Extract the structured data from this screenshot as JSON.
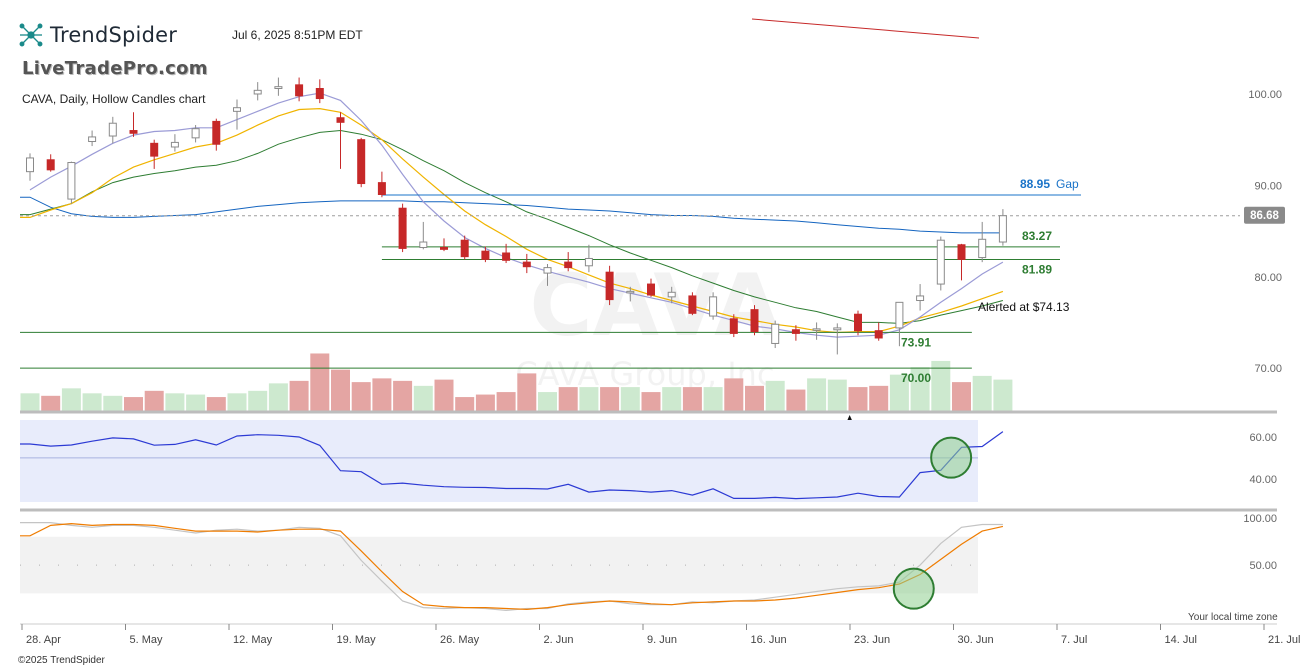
{
  "header": {
    "brand": "TrendSpider",
    "timestamp": "Jul 6, 2025 8:51PM EDT",
    "watermark_site": "LiveTradePro.com",
    "chart_description": "CAVA, Daily, Hollow Candles chart"
  },
  "footer": {
    "copyright": "©2025 TrendSpider",
    "local_time_label": "Your local time zone"
  },
  "chart_data": {
    "type": "candlestick",
    "symbol_watermark": "CAVA",
    "company_watermark": "CAVA Group, Inc.",
    "price_ticks": [
      "100.00",
      "90.00",
      "80.00",
      "70.00"
    ],
    "price_tick_values": [
      100,
      90,
      80,
      70
    ],
    "price_range": [
      65.2,
      103.5
    ],
    "x_tick_labels": [
      "28. Apr",
      "5. May",
      "12. May",
      "19. May",
      "26. May",
      "2. Jun",
      "9. Jun",
      "16. Jun",
      "23. Jun",
      "30. Jun",
      "7. Jul",
      "14. Jul",
      "21. Jul"
    ],
    "x_tick_bar_index": [
      0,
      5,
      10,
      15,
      20,
      25,
      30,
      35,
      40,
      45,
      50,
      55,
      60
    ],
    "last_price": "86.68",
    "last_price_value": 86.68,
    "colors": {
      "up": "#8a8a8a",
      "down": "#c62828",
      "vol_up": "#cde9cf",
      "vol_down": "#e4a5a3",
      "level": "#2e7d32",
      "gap": "#1a73c8"
    },
    "candles": [
      {
        "d": "Apr 28",
        "o": 91.5,
        "h": 93.5,
        "l": 90.5,
        "c": 93.0
      },
      {
        "d": "Apr 29",
        "o": 92.8,
        "h": 93.4,
        "l": 91.5,
        "c": 91.7
      },
      {
        "d": "Apr 30",
        "o": 88.5,
        "h": 92.6,
        "l": 88.0,
        "c": 92.5
      },
      {
        "d": "May 1",
        "o": 94.8,
        "h": 96.0,
        "l": 94.3,
        "c": 95.3
      },
      {
        "d": "May 2",
        "o": 95.4,
        "h": 97.5,
        "l": 94.6,
        "c": 96.8
      },
      {
        "d": "May 5",
        "o": 96.0,
        "h": 98.0,
        "l": 95.3,
        "c": 95.7
      },
      {
        "d": "May 6",
        "o": 94.6,
        "h": 95.0,
        "l": 91.8,
        "c": 93.2
      },
      {
        "d": "May 7",
        "o": 94.2,
        "h": 95.6,
        "l": 93.7,
        "c": 94.7
      },
      {
        "d": "May 8",
        "o": 95.2,
        "h": 96.6,
        "l": 94.7,
        "c": 96.2
      },
      {
        "d": "May 9",
        "o": 97.0,
        "h": 97.3,
        "l": 93.8,
        "c": 94.5
      },
      {
        "d": "May 12",
        "o": 98.1,
        "h": 99.4,
        "l": 96.1,
        "c": 98.5
      },
      {
        "d": "May 13",
        "o": 100.0,
        "h": 101.3,
        "l": 99.3,
        "c": 100.4
      },
      {
        "d": "May 14",
        "o": 100.6,
        "h": 101.8,
        "l": 99.8,
        "c": 100.8
      },
      {
        "d": "May 15",
        "o": 101.0,
        "h": 101.8,
        "l": 99.2,
        "c": 99.8
      },
      {
        "d": "May 16",
        "o": 100.6,
        "h": 101.6,
        "l": 99.0,
        "c": 99.5
      },
      {
        "d": "May 19",
        "o": 97.4,
        "h": 98.0,
        "l": 91.8,
        "c": 96.9
      },
      {
        "d": "May 20",
        "o": 95.0,
        "h": 95.2,
        "l": 89.8,
        "c": 90.2
      },
      {
        "d": "May 21",
        "o": 90.3,
        "h": 91.5,
        "l": 88.7,
        "c": 89.0
      },
      {
        "d": "May 22",
        "o": 87.5,
        "h": 88.0,
        "l": 82.7,
        "c": 83.1
      },
      {
        "d": "May 23",
        "o": 83.2,
        "h": 86.0,
        "l": 83.0,
        "c": 83.8
      },
      {
        "d": "May 27",
        "o": 83.2,
        "h": 84.2,
        "l": 82.8,
        "c": 83.0
      },
      {
        "d": "May 28",
        "o": 84.0,
        "h": 84.5,
        "l": 81.9,
        "c": 82.2
      },
      {
        "d": "May 29",
        "o": 82.8,
        "h": 83.3,
        "l": 81.6,
        "c": 81.9
      },
      {
        "d": "May 30",
        "o": 82.6,
        "h": 83.6,
        "l": 81.5,
        "c": 81.8
      },
      {
        "d": "Jun 2",
        "o": 81.6,
        "h": 82.5,
        "l": 80.4,
        "c": 81.1
      },
      {
        "d": "Jun 3",
        "o": 80.4,
        "h": 81.4,
        "l": 79.0,
        "c": 81.0
      },
      {
        "d": "Jun 4",
        "o": 81.6,
        "h": 82.7,
        "l": 80.6,
        "c": 81.0
      },
      {
        "d": "Jun 5",
        "o": 81.2,
        "h": 83.5,
        "l": 80.5,
        "c": 82.0
      },
      {
        "d": "Jun 6",
        "o": 80.5,
        "h": 81.2,
        "l": 76.9,
        "c": 77.5
      },
      {
        "d": "Jun 9",
        "o": 78.3,
        "h": 78.9,
        "l": 77.3,
        "c": 78.4
      },
      {
        "d": "Jun 10",
        "o": 79.2,
        "h": 79.8,
        "l": 77.8,
        "c": 78.0
      },
      {
        "d": "Jun 11",
        "o": 77.8,
        "h": 78.9,
        "l": 77.1,
        "c": 78.3
      },
      {
        "d": "Jun 12",
        "o": 77.9,
        "h": 78.3,
        "l": 75.8,
        "c": 76.0
      },
      {
        "d": "Jun 13",
        "o": 75.7,
        "h": 78.3,
        "l": 75.3,
        "c": 77.8
      },
      {
        "d": "Jun 16",
        "o": 75.4,
        "h": 75.9,
        "l": 73.4,
        "c": 73.8
      },
      {
        "d": "Jun 17",
        "o": 76.4,
        "h": 76.9,
        "l": 73.6,
        "c": 74.0
      },
      {
        "d": "Jun 18",
        "o": 72.7,
        "h": 75.2,
        "l": 72.2,
        "c": 74.8
      },
      {
        "d": "Jun 20",
        "o": 74.2,
        "h": 74.7,
        "l": 73.0,
        "c": 73.8
      },
      {
        "d": "Jun 23",
        "o": 74.2,
        "h": 75.0,
        "l": 73.1,
        "c": 74.3
      },
      {
        "d": "Jun 24",
        "o": 74.2,
        "h": 74.9,
        "l": 71.5,
        "c": 74.4
      },
      {
        "d": "Jun 25",
        "o": 75.9,
        "h": 76.3,
        "l": 73.6,
        "c": 74.1
      },
      {
        "d": "Jun 26",
        "o": 74.1,
        "h": 75.0,
        "l": 73.0,
        "c": 73.3
      },
      {
        "d": "Jun 27",
        "o": 74.4,
        "h": 77.2,
        "l": 72.4,
        "c": 77.2
      },
      {
        "d": "Jun 30",
        "o": 77.4,
        "h": 79.2,
        "l": 76.3,
        "c": 77.9
      },
      {
        "d": "Jul 1",
        "o": 79.2,
        "h": 84.4,
        "l": 78.5,
        "c": 84.0
      },
      {
        "d": "Jul 2",
        "o": 83.5,
        "h": 83.6,
        "l": 79.6,
        "c": 81.9
      },
      {
        "d": "Jul 3",
        "o": 82.1,
        "h": 86.0,
        "l": 81.6,
        "c": 84.1
      },
      {
        "d": "Jul 4",
        "o": 83.8,
        "h": 87.4,
        "l": 83.4,
        "c": 86.68
      }
    ],
    "volume": [
      1.5,
      1.3,
      1.9,
      1.5,
      1.3,
      1.2,
      1.7,
      1.5,
      1.4,
      1.2,
      1.5,
      1.7,
      2.3,
      2.5,
      4.7,
      3.4,
      2.4,
      2.7,
      2.5,
      2.1,
      2.6,
      1.2,
      1.4,
      1.6,
      3.1,
      1.6,
      2.0,
      2.0,
      2.0,
      2.0,
      1.6,
      2.0,
      2.0,
      2.0,
      2.7,
      2.1,
      2.5,
      1.8,
      2.7,
      2.6,
      2.0,
      2.1,
      3.0,
      3.6,
      4.1,
      2.4,
      2.9,
      2.6
    ],
    "volume_range": [
      0,
      5.3
    ],
    "sma_slow": [
      88.7,
      87.6,
      86.9,
      86.6,
      86.5,
      86.5,
      86.6,
      86.7,
      86.8,
      87.1,
      87.4,
      87.7,
      87.9,
      88.1,
      88.2,
      88.3,
      88.3,
      88.3,
      88.3,
      88.2,
      88.2,
      88.1,
      88.0,
      87.9,
      87.8,
      87.6,
      87.4,
      87.3,
      87.2,
      87.0,
      86.8,
      86.7,
      86.7,
      86.6,
      86.4,
      86.3,
      86.2,
      86.1,
      85.9,
      85.7,
      85.5,
      85.3,
      85.2,
      85.0,
      84.9,
      84.8,
      84.8,
      84.8
    ],
    "ema_green": [
      86.8,
      87.4,
      88.0,
      89.3,
      90.3,
      90.9,
      91.3,
      91.6,
      92.0,
      92.2,
      92.7,
      93.5,
      94.5,
      95.2,
      95.8,
      96.0,
      95.6,
      95.0,
      93.9,
      92.7,
      91.6,
      90.3,
      89.2,
      88.2,
      87.1,
      86.3,
      85.4,
      84.5,
      83.5,
      82.6,
      81.8,
      81.0,
      80.1,
      79.3,
      78.5,
      77.8,
      77.2,
      76.6,
      76.2,
      75.6,
      75.0,
      75.0,
      74.9,
      75.2,
      75.8,
      76.3,
      76.8,
      77.4
    ],
    "ema_yellow": [
      86.5,
      87.3,
      88.0,
      89.2,
      90.8,
      92.0,
      92.8,
      93.5,
      94.2,
      94.6,
      95.5,
      96.6,
      97.6,
      98.3,
      98.4,
      98.0,
      96.6,
      95.0,
      92.9,
      90.9,
      89.0,
      87.2,
      85.7,
      84.4,
      83.0,
      81.9,
      81.1,
      80.2,
      79.3,
      78.7,
      78.0,
      77.4,
      76.8,
      76.2,
      75.6,
      75.2,
      74.8,
      74.5,
      74.1,
      73.9,
      74.0,
      74.0,
      74.6,
      75.5,
      76.1,
      76.8,
      77.6,
      78.4
    ],
    "ma_lavender": [
      89.5,
      90.9,
      92.1,
      93.4,
      94.6,
      95.5,
      95.9,
      96.0,
      96.3,
      96.3,
      97.2,
      98.1,
      99.0,
      99.7,
      100.1,
      99.3,
      97.1,
      94.4,
      91.2,
      88.2,
      86.1,
      84.3,
      83.1,
      82.1,
      81.3,
      80.6,
      80.0,
      79.4,
      78.7,
      78.2,
      77.7,
      77.2,
      76.5,
      75.8,
      75.2,
      74.6,
      74.3,
      73.9,
      73.6,
      73.4,
      73.5,
      73.6,
      74.2,
      75.6,
      77.2,
      78.7,
      80.3,
      81.6
    ],
    "levels": [
      {
        "label": "88.95",
        "value": 88.95,
        "suffix": "Gap",
        "color": "#1a73c8",
        "x_start": 17,
        "x_end": 52
      },
      {
        "label": "83.27",
        "value": 83.27,
        "color": "#2e7d32",
        "x_start": 17,
        "x_end": 52
      },
      {
        "label": "81.89",
        "value": 81.89,
        "color": "#2e7d32",
        "x_start": 17,
        "x_end": 52
      },
      {
        "label": "73.91",
        "value": 73.91,
        "color": "#2e7d32",
        "x_start": 0,
        "x_end": 45.5
      },
      {
        "label": "70.00",
        "value": 70.0,
        "color": "#2e7d32",
        "x_start": 0,
        "x_end": 45.5
      }
    ],
    "annotation": {
      "text": "Alerted at $74.13",
      "x_bar": 46.5,
      "y_value": 76.7
    },
    "arrow_bar": 39.5,
    "ind1": {
      "ticks": [
        "60.00",
        "40.00"
      ],
      "tick_values": [
        60,
        40
      ],
      "range": [
        29,
        68
      ],
      "mid_line": 50,
      "values": [
        56.6,
        55.6,
        56.1,
        57.9,
        59.5,
        59.0,
        56.0,
        56.4,
        58.6,
        56.1,
        60.4,
        61.0,
        60.7,
        59.9,
        55.9,
        43.9,
        43.4,
        37.4,
        38.0,
        37.0,
        36.3,
        36.0,
        35.9,
        35.4,
        35.4,
        35.2,
        37.4,
        33.7,
        34.7,
        34.4,
        33.7,
        34.4,
        32.3,
        35.3,
        30.7,
        30.7,
        31.2,
        30.6,
        31.0,
        31.4,
        33.2,
        31.6,
        31.4,
        43.0,
        44.1,
        55.0,
        55.4,
        62.5
      ],
      "circle_bar": 44.5,
      "circle_value": 50.1
    },
    "ind2": {
      "ticks": [
        "100.00",
        "50.00"
      ],
      "tick_values": [
        100,
        50
      ],
      "range": [
        -5,
        102
      ],
      "band": [
        20,
        80
      ],
      "k": [
        95,
        95,
        92,
        90,
        92,
        92,
        90,
        87,
        84,
        87,
        88,
        86,
        87,
        90,
        89,
        81,
        55,
        33,
        12,
        5,
        4,
        5,
        4,
        2,
        4,
        4,
        9,
        11,
        12,
        9,
        8,
        8,
        11,
        10,
        12,
        13,
        16,
        19,
        22,
        25,
        27,
        28,
        32,
        50,
        73,
        90,
        93,
        93
      ],
      "d": [
        81,
        92,
        94,
        92,
        93,
        93,
        92,
        89,
        86,
        86,
        86,
        85,
        87,
        88,
        88,
        86,
        65,
        43,
        22,
        8,
        6,
        5,
        5,
        4,
        3,
        5,
        8,
        10,
        12,
        11,
        9,
        8,
        10,
        11,
        12,
        12,
        13,
        15,
        18,
        21,
        24,
        26,
        30,
        40,
        56,
        72,
        86,
        91
      ],
      "circle_bar": 42.5,
      "circle_value": 25
    }
  }
}
